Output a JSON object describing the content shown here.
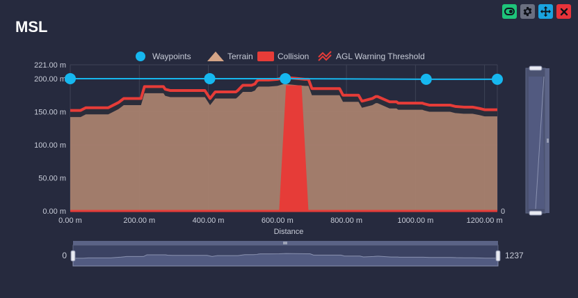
{
  "title": "MSL",
  "toolbar": {
    "buttons": [
      {
        "name": "toggle-icon",
        "color": "#1ec47a"
      },
      {
        "name": "gear-icon",
        "color": "#6a6f80"
      },
      {
        "name": "move-icon",
        "color": "#1aa3e0"
      },
      {
        "name": "close-icon",
        "color": "#e8333a"
      }
    ]
  },
  "colors": {
    "background": "#262a3e",
    "waypoint": "#16b7ef",
    "terrain": "#a8816e",
    "terrain_legend": "#d4a487",
    "collision": "#e63c38",
    "agl_threshold": "#e63c38",
    "dark_band": "#2b2d3a",
    "grid": "#3e4356",
    "axis_text": "#c8ccd8"
  },
  "chart_data": {
    "type": "area",
    "title": "MSL",
    "xlabel": "Distance",
    "ylabel": "",
    "xlim": [
      0,
      1237
    ],
    "ylim": [
      0,
      221
    ],
    "x_ticks": [
      0,
      200,
      400,
      600,
      800,
      1000,
      1200
    ],
    "x_tick_labels": [
      "0.00 m",
      "200.00 m",
      "400.00 m",
      "600.00 m",
      "800.00 m",
      "1000.00 m",
      "1200.00 m"
    ],
    "y_ticks": [
      0,
      50,
      100,
      150,
      200,
      221
    ],
    "y_tick_labels": [
      "0.00 m",
      "50.00 m",
      "100.00 m",
      "150.00 m",
      "200.00 m",
      "221.00 m"
    ],
    "legend": [
      {
        "label": "Waypoints",
        "symbol": "circle"
      },
      {
        "label": "Terrain",
        "symbol": "triangle"
      },
      {
        "label": "Collision",
        "symbol": "rect"
      },
      {
        "label": "AGL Warning Threshold",
        "symbol": "zigzag"
      }
    ],
    "legend_position": "top-center",
    "right_axis_label": "0",
    "waypoints": {
      "x": [
        0,
        404,
        623,
        1031,
        1237
      ],
      "y": [
        200,
        200,
        200,
        199,
        199
      ]
    },
    "terrain": {
      "x": [
        0,
        30,
        45,
        110,
        125,
        140,
        150,
        155,
        205,
        215,
        270,
        275,
        290,
        390,
        405,
        420,
        480,
        485,
        500,
        525,
        535,
        540,
        545,
        575,
        600,
        620,
        640,
        680,
        690,
        700,
        780,
        790,
        835,
        845,
        875,
        885,
        890,
        925,
        945,
        950,
        1020,
        1025,
        1040,
        1100,
        1115,
        1140,
        1165,
        1185,
        1200,
        1237
      ],
      "y": [
        142,
        142,
        146,
        146,
        150,
        154,
        158,
        160,
        160,
        178,
        178,
        174,
        172,
        172,
        160,
        170,
        170,
        172,
        180,
        180,
        182,
        186,
        188,
        188,
        189,
        192,
        191,
        189,
        189,
        175,
        175,
        165,
        165,
        156,
        160,
        163,
        163,
        155,
        155,
        153,
        153,
        152,
        150,
        150,
        148,
        147,
        147,
        145,
        143,
        143
      ]
    },
    "agl_threshold": {
      "x": [
        0,
        30,
        45,
        110,
        125,
        140,
        150,
        155,
        205,
        215,
        270,
        275,
        290,
        390,
        405,
        420,
        480,
        485,
        500,
        525,
        535,
        540,
        545,
        575,
        600,
        620,
        640,
        680,
        690,
        700,
        780,
        790,
        835,
        845,
        875,
        885,
        890,
        925,
        945,
        950,
        1020,
        1025,
        1040,
        1100,
        1115,
        1140,
        1165,
        1185,
        1200,
        1237
      ],
      "y": [
        152,
        152,
        156,
        156,
        160,
        164,
        168,
        170,
        170,
        188,
        188,
        184,
        182,
        182,
        170,
        180,
        180,
        182,
        190,
        190,
        192,
        196,
        198,
        198,
        199,
        202,
        201,
        199,
        199,
        185,
        185,
        175,
        175,
        166,
        170,
        173,
        173,
        165,
        165,
        163,
        163,
        162,
        160,
        160,
        158,
        157,
        157,
        155,
        153,
        153
      ]
    },
    "collision": {
      "x": [
        0,
        605,
        625,
        670,
        690,
        1237
      ],
      "y": [
        0,
        0,
        190,
        190,
        0,
        0
      ]
    },
    "zoom_slider": {
      "start_label": "0",
      "end_label": "1237",
      "start": 0,
      "end": 1237
    },
    "y_slider": {
      "start": 0,
      "end": 221
    }
  }
}
